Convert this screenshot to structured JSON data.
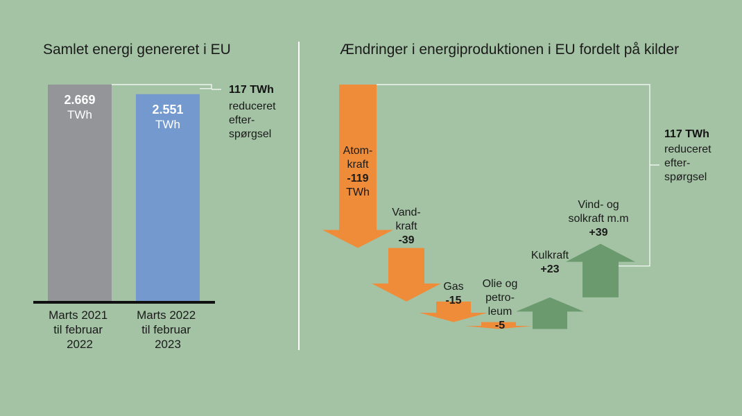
{
  "chart_data": [
    {
      "type": "bar",
      "title": "Samlet energi genereret i EU",
      "categories": [
        [
          "Marts 2021",
          "til februar",
          "2022"
        ],
        [
          "Marts 2022",
          "til februar",
          "2023"
        ]
      ],
      "values": [
        2669,
        2551
      ],
      "value_labels": [
        "2.669",
        "2.551"
      ],
      "unit": "TWh",
      "colors": [
        "#939598",
        "#7399cf"
      ],
      "ylim": [
        0,
        2669
      ],
      "annotation": {
        "value": "117 TWh",
        "lines": [
          "reduceret",
          "efter-",
          "spørgsel"
        ]
      }
    },
    {
      "type": "waterfall",
      "title": "Ændringer i energiproduktionen i EU fordelt på kilder",
      "items": [
        {
          "lines": [
            "Atom-",
            "kraft"
          ],
          "label": "-119",
          "unit": "TWh",
          "value": -119
        },
        {
          "lines": [
            "Vand-",
            "kraft"
          ],
          "label": "-39",
          "value": -39
        },
        {
          "lines": [
            "Gas"
          ],
          "label": "-15",
          "value": -15
        },
        {
          "lines": [
            "Olie og",
            "petro-",
            "leum"
          ],
          "label": "-5",
          "value": -5
        },
        {
          "lines": [
            "Kulkraft"
          ],
          "label": "+23",
          "value": 23
        },
        {
          "lines": [
            "Vind- og",
            "solkraft m.m"
          ],
          "label": "+39",
          "value": 39
        }
      ],
      "colors": {
        "negative": "#ee8c3a",
        "positive": "#6a9a6e"
      },
      "annotation": {
        "value": "117 TWh",
        "lines": [
          "reduceret",
          "efter-",
          "spørgsel"
        ]
      }
    }
  ]
}
